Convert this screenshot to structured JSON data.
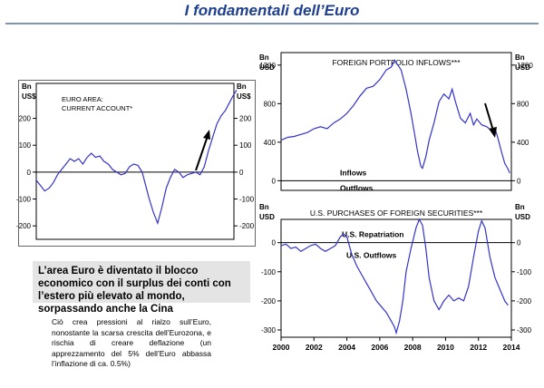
{
  "page_title": "I fondamentali dell’Euro",
  "callout_text": "L’area Euro è diventato il blocco economico con il surplus dei conti con l’estero più elevato al mondo, sorpassando anche la Cina",
  "note_text": "Ciò crea pressioni al rialzo sull’Euro, nonostante la scarsa crescita dell’Eurozona, e rischia di creare deflazione (un apprezzamento del 5% dell’Euro abbassa l’inflazione di ca. 0.5%)",
  "colors": {
    "title": "#1f3f8f",
    "series": "#3333cc",
    "callout_bg": "#e4e4e4"
  },
  "chart_data": [
    {
      "type": "line",
      "title": "EURO AREA:\nCURRENT ACCOUNT*",
      "left_unit": [
        "Bn",
        "US$"
      ],
      "right_unit": [
        "Bn",
        "US$"
      ],
      "x_range": [
        2000,
        2014
      ],
      "ylim": [
        -250,
        330
      ],
      "yticks": [
        -200,
        -100,
        0,
        100,
        200
      ],
      "annotation": "upward arrow near latest values",
      "series": [
        {
          "values": [
            [
              2000.0,
              -30
            ],
            [
              2000.3,
              -50
            ],
            [
              2000.6,
              -70
            ],
            [
              2000.9,
              -60
            ],
            [
              2001.2,
              -40
            ],
            [
              2001.5,
              -10
            ],
            [
              2001.8,
              10
            ],
            [
              2002.1,
              30
            ],
            [
              2002.4,
              50
            ],
            [
              2002.7,
              40
            ],
            [
              2003.0,
              50
            ],
            [
              2003.3,
              30
            ],
            [
              2003.6,
              55
            ],
            [
              2003.9,
              70
            ],
            [
              2004.2,
              55
            ],
            [
              2004.5,
              60
            ],
            [
              2004.8,
              40
            ],
            [
              2005.1,
              30
            ],
            [
              2005.4,
              10
            ],
            [
              2005.7,
              0
            ],
            [
              2006.0,
              -10
            ],
            [
              2006.3,
              -5
            ],
            [
              2006.6,
              20
            ],
            [
              2006.9,
              30
            ],
            [
              2007.2,
              25
            ],
            [
              2007.5,
              0
            ],
            [
              2007.8,
              -60
            ],
            [
              2008.0,
              -100
            ],
            [
              2008.3,
              -150
            ],
            [
              2008.6,
              -190
            ],
            [
              2008.9,
              -130
            ],
            [
              2009.2,
              -60
            ],
            [
              2009.5,
              -20
            ],
            [
              2009.8,
              10
            ],
            [
              2010.1,
              0
            ],
            [
              2010.4,
              -20
            ],
            [
              2010.7,
              -10
            ],
            [
              2011.0,
              -5
            ],
            [
              2011.3,
              0
            ],
            [
              2011.6,
              -10
            ],
            [
              2011.9,
              20
            ],
            [
              2012.2,
              80
            ],
            [
              2012.5,
              130
            ],
            [
              2012.8,
              180
            ],
            [
              2013.1,
              210
            ],
            [
              2013.4,
              230
            ],
            [
              2013.7,
              260
            ],
            [
              2014.0,
              290
            ],
            [
              2014.2,
              305
            ]
          ]
        }
      ]
    },
    {
      "type": "line",
      "title": "FOREIGN PORTFOLIO INFLOWS***",
      "left_unit": [
        "Bn",
        "USD"
      ],
      "right_unit": [
        "Bn",
        "USD"
      ],
      "x_range": [
        2000,
        2014
      ],
      "ylim": [
        -100,
        1330
      ],
      "yticks": [
        0,
        400,
        800,
        1200
      ],
      "inflows_label": "Inflows",
      "outflows_label": "Outflows",
      "annotation": "downward arrow near latest values",
      "series": [
        {
          "values": [
            [
              2000.0,
              420
            ],
            [
              2000.4,
              450
            ],
            [
              2000.8,
              460
            ],
            [
              2001.2,
              480
            ],
            [
              2001.6,
              500
            ],
            [
              2002.0,
              540
            ],
            [
              2002.4,
              560
            ],
            [
              2002.8,
              540
            ],
            [
              2003.2,
              600
            ],
            [
              2003.6,
              640
            ],
            [
              2004.0,
              700
            ],
            [
              2004.4,
              780
            ],
            [
              2004.8,
              880
            ],
            [
              2005.2,
              960
            ],
            [
              2005.6,
              980
            ],
            [
              2006.0,
              1050
            ],
            [
              2006.4,
              1150
            ],
            [
              2006.7,
              1180
            ],
            [
              2006.9,
              1250
            ],
            [
              2007.1,
              1200
            ],
            [
              2007.3,
              1150
            ],
            [
              2007.6,
              950
            ],
            [
              2007.9,
              700
            ],
            [
              2008.1,
              500
            ],
            [
              2008.3,
              300
            ],
            [
              2008.5,
              150
            ],
            [
              2008.6,
              130
            ],
            [
              2008.8,
              250
            ],
            [
              2009.0,
              420
            ],
            [
              2009.3,
              600
            ],
            [
              2009.6,
              820
            ],
            [
              2009.9,
              900
            ],
            [
              2010.2,
              850
            ],
            [
              2010.4,
              950
            ],
            [
              2010.6,
              820
            ],
            [
              2010.9,
              650
            ],
            [
              2011.2,
              600
            ],
            [
              2011.5,
              700
            ],
            [
              2011.7,
              580
            ],
            [
              2011.9,
              640
            ],
            [
              2012.2,
              580
            ],
            [
              2012.5,
              560
            ],
            [
              2012.8,
              520
            ],
            [
              2013.0,
              550
            ],
            [
              2013.2,
              430
            ],
            [
              2013.4,
              300
            ],
            [
              2013.6,
              180
            ],
            [
              2013.8,
              120
            ],
            [
              2013.9,
              80
            ]
          ]
        }
      ]
    },
    {
      "type": "line",
      "title": "U.S. PURCHASES OF FOREIGN SECURITIES***",
      "left_unit": [
        "Bn",
        "USD"
      ],
      "right_unit": [
        "Bn",
        "USD"
      ],
      "xlabel": "",
      "x_ticks": [
        2000,
        2002,
        2004,
        2006,
        2008,
        2010,
        2012,
        2014
      ],
      "x_range": [
        2000,
        2014
      ],
      "ylim": [
        -325,
        80
      ],
      "yticks": [
        -300,
        -200,
        -100,
        0
      ],
      "repatriation_label": "U.S. Repatriation",
      "outflows_label": "U.S. Outflows",
      "series": [
        {
          "values": [
            [
              2000.0,
              -10
            ],
            [
              2000.3,
              -5
            ],
            [
              2000.6,
              -20
            ],
            [
              2000.9,
              -15
            ],
            [
              2001.2,
              -30
            ],
            [
              2001.5,
              -20
            ],
            [
              2001.8,
              -10
            ],
            [
              2002.1,
              -5
            ],
            [
              2002.4,
              -20
            ],
            [
              2002.7,
              -30
            ],
            [
              2003.0,
              -20
            ],
            [
              2003.3,
              -10
            ],
            [
              2003.6,
              20
            ],
            [
              2003.8,
              30
            ],
            [
              2004.0,
              20
            ],
            [
              2004.3,
              -40
            ],
            [
              2004.6,
              -80
            ],
            [
              2004.9,
              -110
            ],
            [
              2005.2,
              -140
            ],
            [
              2005.5,
              -170
            ],
            [
              2005.8,
              -200
            ],
            [
              2006.1,
              -220
            ],
            [
              2006.4,
              -240
            ],
            [
              2006.7,
              -270
            ],
            [
              2006.9,
              -290
            ],
            [
              2007.0,
              -310
            ],
            [
              2007.2,
              -270
            ],
            [
              2007.4,
              -200
            ],
            [
              2007.6,
              -100
            ],
            [
              2007.9,
              -20
            ],
            [
              2008.2,
              50
            ],
            [
              2008.4,
              80
            ],
            [
              2008.6,
              60
            ],
            [
              2008.8,
              -20
            ],
            [
              2009.0,
              -120
            ],
            [
              2009.3,
              -200
            ],
            [
              2009.6,
              -230
            ],
            [
              2009.9,
              -200
            ],
            [
              2010.2,
              -180
            ],
            [
              2010.5,
              -200
            ],
            [
              2010.8,
              -190
            ],
            [
              2011.1,
              -200
            ],
            [
              2011.4,
              -150
            ],
            [
              2011.7,
              -50
            ],
            [
              2012.0,
              40
            ],
            [
              2012.2,
              75
            ],
            [
              2012.4,
              50
            ],
            [
              2012.7,
              -50
            ],
            [
              2013.0,
              -120
            ],
            [
              2013.3,
              -160
            ],
            [
              2013.6,
              -200
            ],
            [
              2013.8,
              -215
            ]
          ]
        }
      ]
    }
  ]
}
